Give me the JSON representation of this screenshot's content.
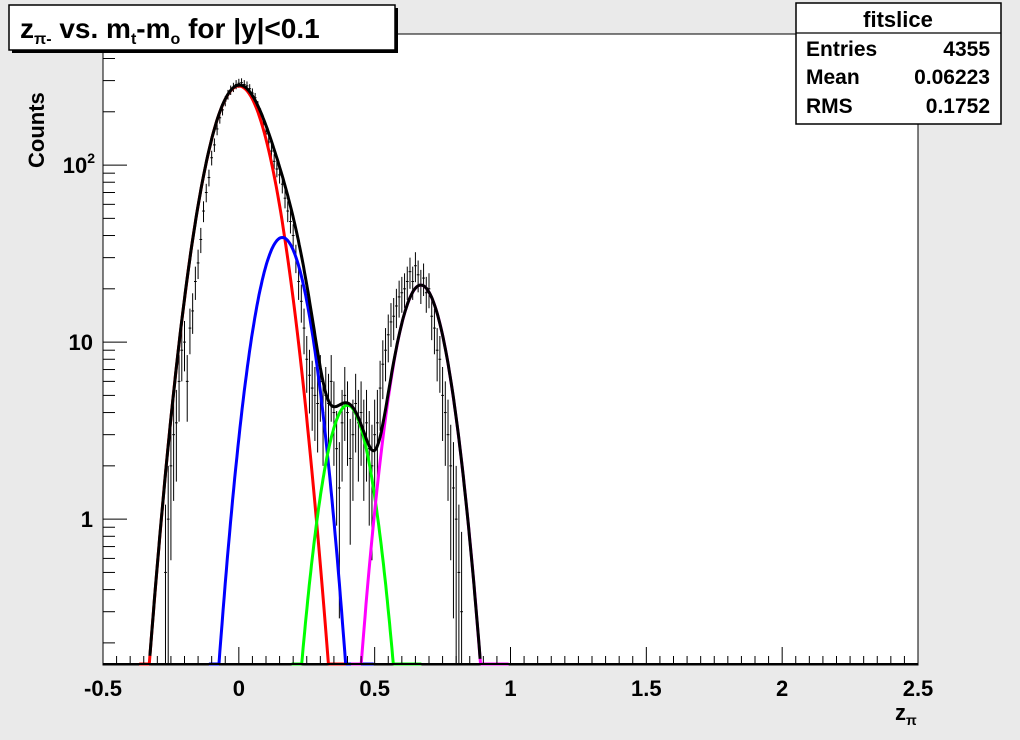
{
  "window": {
    "background": "#eaeaea"
  },
  "title": {
    "main": "z",
    "main_sub": "π-",
    "rest1": " vs. m",
    "rest1_sub": "t",
    "rest2": "-m",
    "rest2_sub": "o",
    "rest3": " for |y|<0.1"
  },
  "stats": {
    "name": "fitslice",
    "rows": [
      {
        "label": "Entries",
        "value": "4355"
      },
      {
        "label": "Mean",
        "value": "0.06223"
      },
      {
        "label": "RMS",
        "value": "0.1752"
      }
    ]
  },
  "chart_data": {
    "type": "line",
    "title": "zπ- vs. mt-mo for |y|<0.1",
    "xlabel": "z",
    "xlabel_sub": "π",
    "ylabel": "Counts",
    "xlim": [
      -0.5,
      2.5
    ],
    "ylim": [
      0.15,
      550
    ],
    "yscale": "log",
    "grid": false,
    "x_ticks": [
      {
        "value": -0.5,
        "label": "-0.5"
      },
      {
        "value": 0,
        "label": "0"
      },
      {
        "value": 0.5,
        "label": "0.5"
      },
      {
        "value": 1,
        "label": "1"
      },
      {
        "value": 1.5,
        "label": "1.5"
      },
      {
        "value": 2,
        "label": "2"
      },
      {
        "value": 2.5,
        "label": "2.5"
      }
    ],
    "y_ticks": [
      {
        "value": 1,
        "label": "1"
      },
      {
        "value": 10,
        "label": "10"
      },
      {
        "value": 100,
        "label": "10",
        "exp": "2"
      }
    ],
    "fit_components": [
      {
        "color": "#ff0000",
        "amplitude": 280,
        "mean": 0.0,
        "sigma": 0.085
      },
      {
        "color": "#0000ff",
        "amplitude": 39,
        "mean": 0.16,
        "sigma": 0.07
      },
      {
        "color": "#00ff00",
        "amplitude": 4.4,
        "mean": 0.4,
        "sigma": 0.065
      },
      {
        "color": "#ff00ff",
        "amplitude": 21,
        "mean": 0.67,
        "sigma": 0.07
      }
    ],
    "total_fit_color": "#000000",
    "histogram": {
      "bin_width": 0.01,
      "bins": [
        {
          "x": -0.27,
          "y": 0.5
        },
        {
          "x": -0.26,
          "y": 1.0
        },
        {
          "x": -0.25,
          "y": 2.0
        },
        {
          "x": -0.24,
          "y": 3.0
        },
        {
          "x": -0.23,
          "y": 3.5
        },
        {
          "x": -0.22,
          "y": 6.0
        },
        {
          "x": -0.21,
          "y": 9.0
        },
        {
          "x": -0.2,
          "y": 10.0
        },
        {
          "x": -0.19,
          "y": 6.0
        },
        {
          "x": -0.18,
          "y": 12.0
        },
        {
          "x": -0.17,
          "y": 15.0
        },
        {
          "x": -0.16,
          "y": 22.0
        },
        {
          "x": -0.15,
          "y": 28.0
        },
        {
          "x": -0.14,
          "y": 38.0
        },
        {
          "x": -0.13,
          "y": 55.0
        },
        {
          "x": -0.12,
          "y": 70.0
        },
        {
          "x": -0.11,
          "y": 85.0
        },
        {
          "x": -0.1,
          "y": 110.0
        },
        {
          "x": -0.09,
          "y": 130.0
        },
        {
          "x": -0.08,
          "y": 160.0
        },
        {
          "x": -0.07,
          "y": 185.0
        },
        {
          "x": -0.06,
          "y": 205.0
        },
        {
          "x": -0.05,
          "y": 230.0
        },
        {
          "x": -0.04,
          "y": 250.0
        },
        {
          "x": -0.03,
          "y": 265.0
        },
        {
          "x": -0.02,
          "y": 275.0
        },
        {
          "x": -0.01,
          "y": 285.0
        },
        {
          "x": 0.0,
          "y": 290.0
        },
        {
          "x": 0.01,
          "y": 292.0
        },
        {
          "x": 0.02,
          "y": 285.0
        },
        {
          "x": 0.03,
          "y": 280.0
        },
        {
          "x": 0.04,
          "y": 270.0
        },
        {
          "x": 0.05,
          "y": 255.0
        },
        {
          "x": 0.06,
          "y": 240.0
        },
        {
          "x": 0.07,
          "y": 215.0
        },
        {
          "x": 0.08,
          "y": 195.0
        },
        {
          "x": 0.09,
          "y": 170.0
        },
        {
          "x": 0.1,
          "y": 150.0
        },
        {
          "x": 0.11,
          "y": 135.0
        },
        {
          "x": 0.12,
          "y": 120.0
        },
        {
          "x": 0.13,
          "y": 105.0
        },
        {
          "x": 0.14,
          "y": 95.0
        },
        {
          "x": 0.15,
          "y": 88.0
        },
        {
          "x": 0.16,
          "y": 78.0
        },
        {
          "x": 0.17,
          "y": 65.0
        },
        {
          "x": 0.18,
          "y": 55.0
        },
        {
          "x": 0.19,
          "y": 48.0
        },
        {
          "x": 0.2,
          "y": 40.0
        },
        {
          "x": 0.21,
          "y": 30.0
        },
        {
          "x": 0.22,
          "y": 22.0
        },
        {
          "x": 0.23,
          "y": 17.0
        },
        {
          "x": 0.24,
          "y": 12.0
        },
        {
          "x": 0.25,
          "y": 8.0
        },
        {
          "x": 0.26,
          "y": 6.5
        },
        {
          "x": 0.27,
          "y": 5.5
        },
        {
          "x": 0.28,
          "y": 5.0
        },
        {
          "x": 0.29,
          "y": 4.5
        },
        {
          "x": 0.3,
          "y": 6.0
        },
        {
          "x": 0.31,
          "y": 4.0
        },
        {
          "x": 0.32,
          "y": 5.0
        },
        {
          "x": 0.33,
          "y": 4.5
        },
        {
          "x": 0.34,
          "y": 6.0
        },
        {
          "x": 0.35,
          "y": 4.0
        },
        {
          "x": 0.36,
          "y": 2.5
        },
        {
          "x": 0.37,
          "y": 1.5
        },
        {
          "x": 0.38,
          "y": 3.5
        },
        {
          "x": 0.39,
          "y": 5.0
        },
        {
          "x": 0.4,
          "y": 4.0
        },
        {
          "x": 0.41,
          "y": 2.2
        },
        {
          "x": 0.42,
          "y": 3.0
        },
        {
          "x": 0.43,
          "y": 4.5
        },
        {
          "x": 0.44,
          "y": 3.5
        },
        {
          "x": 0.45,
          "y": 4.0
        },
        {
          "x": 0.46,
          "y": 3.0
        },
        {
          "x": 0.47,
          "y": 3.5
        },
        {
          "x": 0.48,
          "y": 2.5
        },
        {
          "x": 0.49,
          "y": 2.0
        },
        {
          "x": 0.5,
          "y": 3.0
        },
        {
          "x": 0.51,
          "y": 3.5
        },
        {
          "x": 0.52,
          "y": 5.5
        },
        {
          "x": 0.53,
          "y": 7.5
        },
        {
          "x": 0.54,
          "y": 9.0
        },
        {
          "x": 0.55,
          "y": 11.0
        },
        {
          "x": 0.56,
          "y": 13.0
        },
        {
          "x": 0.57,
          "y": 14.0
        },
        {
          "x": 0.58,
          "y": 16.0
        },
        {
          "x": 0.59,
          "y": 18.0
        },
        {
          "x": 0.6,
          "y": 19.0
        },
        {
          "x": 0.61,
          "y": 20.0
        },
        {
          "x": 0.62,
          "y": 22.0
        },
        {
          "x": 0.63,
          "y": 25.0
        },
        {
          "x": 0.64,
          "y": 22.0
        },
        {
          "x": 0.65,
          "y": 27.0
        },
        {
          "x": 0.66,
          "y": 24.0
        },
        {
          "x": 0.67,
          "y": 21.0
        },
        {
          "x": 0.68,
          "y": 23.0
        },
        {
          "x": 0.69,
          "y": 19.0
        },
        {
          "x": 0.7,
          "y": 20.0
        },
        {
          "x": 0.71,
          "y": 14.0
        },
        {
          "x": 0.72,
          "y": 12.0
        },
        {
          "x": 0.73,
          "y": 9.0
        },
        {
          "x": 0.74,
          "y": 8.0
        },
        {
          "x": 0.75,
          "y": 5.0
        },
        {
          "x": 0.76,
          "y": 4.0
        },
        {
          "x": 0.77,
          "y": 3.0
        },
        {
          "x": 0.78,
          "y": 2.0
        },
        {
          "x": 0.79,
          "y": 1.5
        },
        {
          "x": 0.8,
          "y": 1.0
        },
        {
          "x": 0.81,
          "y": 0.5
        },
        {
          "x": 0.82,
          "y": 0.3
        }
      ]
    }
  }
}
